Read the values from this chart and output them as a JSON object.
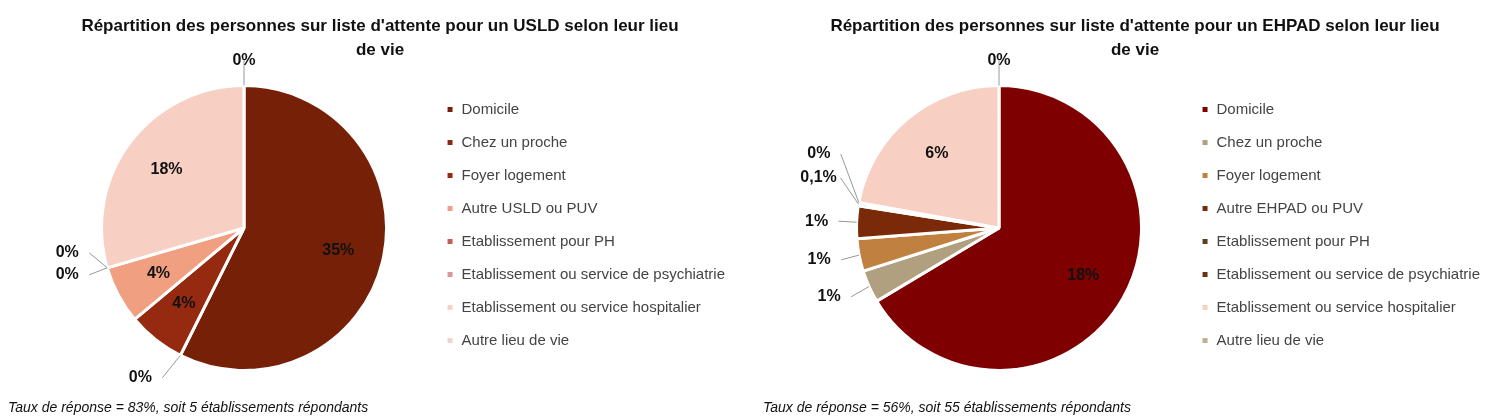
{
  "chart_data": [
    {
      "type": "pie",
      "title": "Répartition des personnes sur liste d'attente pour un USLD selon leur lieu de vie",
      "categories": [
        "Domicile",
        "Chez un proche",
        "Foyer logement",
        "Autre USLD ou PUV",
        "Etablissement pour PH",
        "Etablissement ou service de psychiatrie",
        "Etablissement ou service hospitalier",
        "Autre lieu de vie"
      ],
      "values": [
        35,
        0,
        4,
        4,
        0,
        0,
        18,
        0
      ],
      "colors": [
        "#772008",
        "#8a2c12",
        "#962a10",
        "#f0a080",
        "#c06050",
        "#d89898",
        "#f8cfc3",
        "#f0d2d2"
      ],
      "value_labels": [
        "35%",
        "0%",
        "4%",
        "4%",
        "0%",
        "0%",
        "18%",
        "0%"
      ],
      "legend": "right",
      "annotations": [
        "Taux de réponse = 83%, soit 5 établissements répondants"
      ]
    },
    {
      "type": "pie",
      "title": "Répartition des personnes sur liste d'attente pour un EHPAD selon leur lieu de vie",
      "categories": [
        "Domicile",
        "Chez un proche",
        "Foyer logement",
        "Autre EHPAD ou PUV",
        "Etablissement pour PH",
        "Etablissement ou service de psychiatrie",
        "Etablissement ou service hospitalier",
        "Autre lieu de vie"
      ],
      "values": [
        18,
        1,
        1,
        1,
        0.1,
        0,
        6,
        0
      ],
      "colors": [
        "#7f0000",
        "#b0a080",
        "#c08040",
        "#7a2a08",
        "#5a4020",
        "#6b3010",
        "#f8cfc3",
        "#c0b090"
      ],
      "value_labels": [
        "18%",
        "1%",
        "1%",
        "1%",
        "0,1%",
        "0%",
        "6%",
        "0%"
      ],
      "legend": "right",
      "annotations": [
        "Taux de réponse = 56%, soit 55 établissements répondants"
      ]
    }
  ]
}
